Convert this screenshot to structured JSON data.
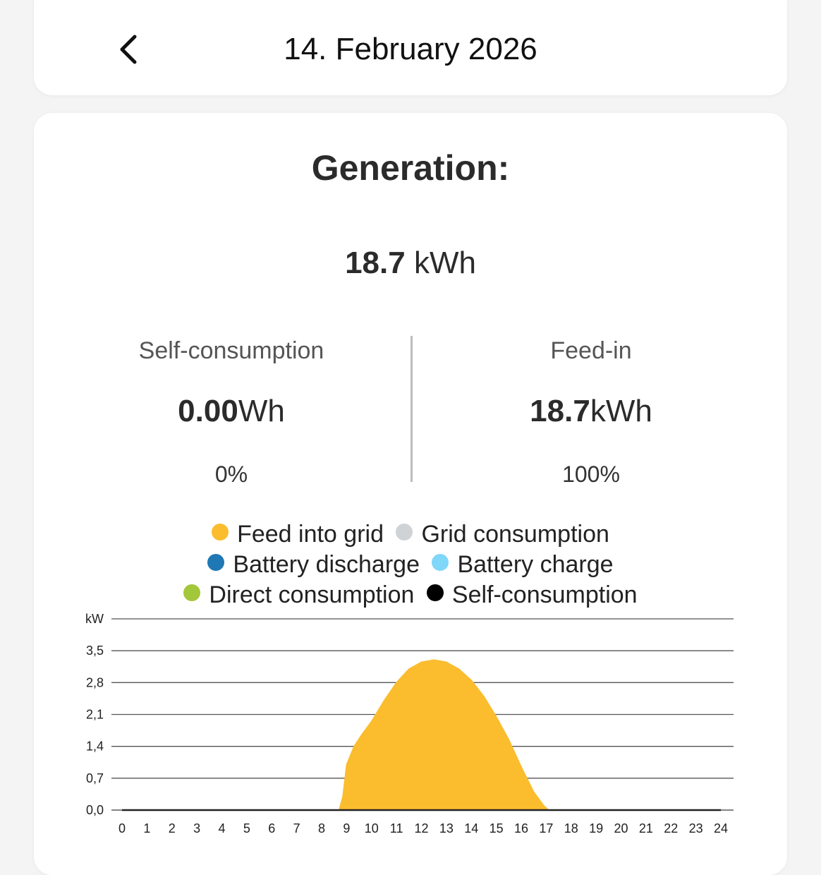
{
  "header": {
    "title": "14. February 2026",
    "back_icon": "chevron-left-icon"
  },
  "generation": {
    "title": "Generation:",
    "total_value": "18.7",
    "total_unit": "kWh"
  },
  "self_consumption": {
    "label": "Self-consumption",
    "value": "0.00",
    "unit": "Wh",
    "percent": "0%"
  },
  "feed_in": {
    "label": "Feed-in",
    "value": "18.7",
    "unit": "kWh",
    "percent": "100%"
  },
  "legend": [
    {
      "label": "Feed into grid",
      "color": "#fbbd2e"
    },
    {
      "label": "Grid consumption",
      "color": "#cfd3d5"
    },
    {
      "label": "Battery discharge",
      "color": "#1f77b4"
    },
    {
      "label": "Battery charge",
      "color": "#7fd7fa"
    },
    {
      "label": "Direct consumption",
      "color": "#a3c73a"
    },
    {
      "label": "Self-consumption",
      "color": "#000000"
    }
  ],
  "chart_data": {
    "type": "area",
    "ylabel": "kW",
    "ylim": [
      0,
      4.2
    ],
    "y_ticks": [
      "0,0",
      "0,7",
      "1,4",
      "2,1",
      "2,8",
      "3,5"
    ],
    "xlim": [
      0,
      24
    ],
    "x_ticks": [
      "0",
      "1",
      "2",
      "3",
      "4",
      "5",
      "6",
      "7",
      "8",
      "9",
      "10",
      "11",
      "12",
      "13",
      "14",
      "15",
      "16",
      "17",
      "18",
      "19",
      "20",
      "21",
      "22",
      "23",
      "24"
    ],
    "grid": true,
    "series": [
      {
        "name": "Feed into grid",
        "color": "#fbbd2e",
        "x": [
          0,
          8.7,
          8.85,
          9.0,
          9.3,
          9.6,
          10.0,
          10.5,
          11.0,
          11.5,
          12.0,
          12.5,
          13.0,
          13.5,
          14.0,
          14.5,
          15.0,
          15.5,
          16.0,
          16.5,
          16.9,
          17.1,
          24
        ],
        "y": [
          0,
          0,
          0.3,
          1.0,
          1.4,
          1.65,
          1.95,
          2.4,
          2.8,
          3.1,
          3.25,
          3.3,
          3.25,
          3.1,
          2.85,
          2.5,
          2.05,
          1.55,
          0.95,
          0.4,
          0.1,
          0,
          0
        ]
      }
    ]
  }
}
